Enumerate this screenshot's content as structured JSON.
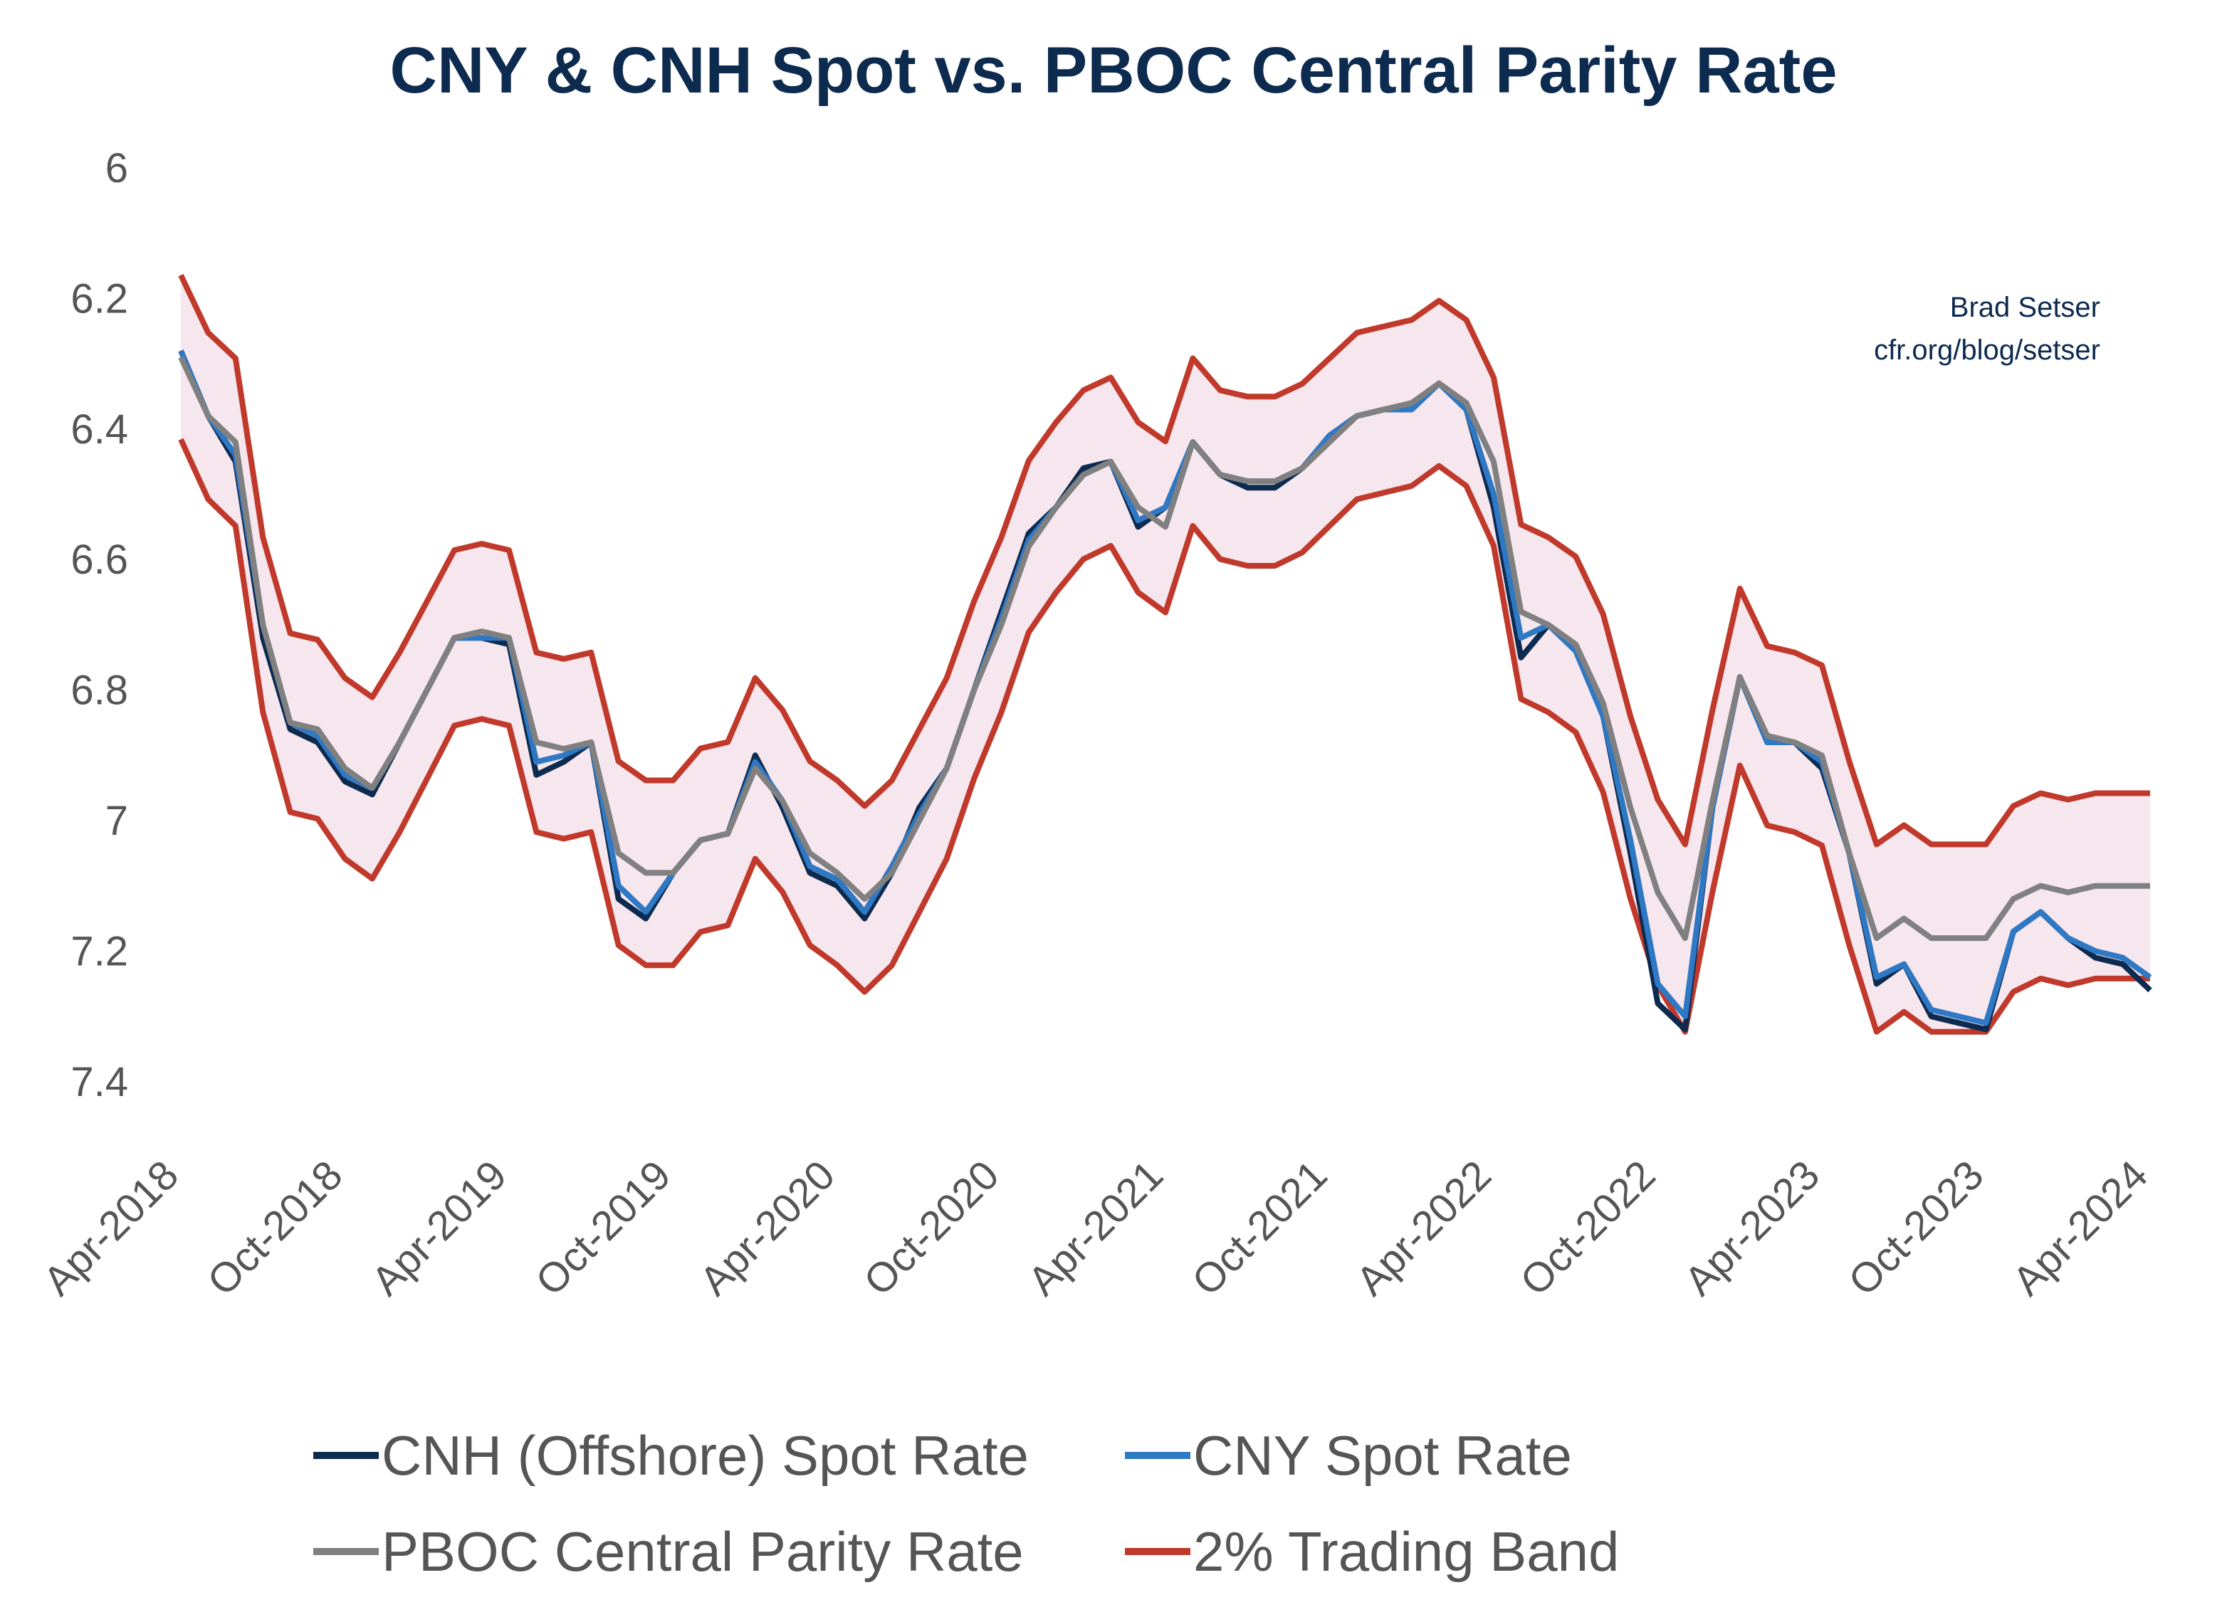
{
  "chart_data": {
    "type": "line",
    "title": "CNY & CNH Spot vs. PBOC Central Parity Rate",
    "credit": [
      "Brad Setser",
      "cfr.org/blog/setser"
    ],
    "ylim": [
      6,
      7.5
    ],
    "y_inverted": true,
    "y_ticks": [
      "6",
      "6.2",
      "6.4",
      "6.6",
      "6.8",
      "7",
      "7.2",
      "7.4"
    ],
    "x_ticks": [
      "Apr-2018",
      "Oct-2018",
      "Apr-2019",
      "Oct-2019",
      "Apr-2020",
      "Oct-2020",
      "Apr-2021",
      "Oct-2021",
      "Apr-2022",
      "Oct-2022",
      "Apr-2023",
      "Oct-2023",
      "Apr-2024"
    ],
    "grid": false,
    "legend_position": "bottom",
    "band_fill_color": "#f6e6ee",
    "x": [
      "2018-04",
      "2018-05",
      "2018-06",
      "2018-07",
      "2018-08",
      "2018-09",
      "2018-10",
      "2018-11",
      "2018-12",
      "2019-01",
      "2019-02",
      "2019-03",
      "2019-04",
      "2019-05",
      "2019-06",
      "2019-07",
      "2019-08",
      "2019-09",
      "2019-10",
      "2019-11",
      "2019-12",
      "2020-01",
      "2020-02",
      "2020-03",
      "2020-04",
      "2020-05",
      "2020-06",
      "2020-07",
      "2020-08",
      "2020-09",
      "2020-10",
      "2020-11",
      "2020-12",
      "2021-01",
      "2021-02",
      "2021-03",
      "2021-04",
      "2021-05",
      "2021-06",
      "2021-07",
      "2021-08",
      "2021-09",
      "2021-10",
      "2021-11",
      "2021-12",
      "2022-01",
      "2022-02",
      "2022-03",
      "2022-04",
      "2022-05",
      "2022-06",
      "2022-07",
      "2022-08",
      "2022-09",
      "2022-10",
      "2022-11",
      "2022-12",
      "2023-01",
      "2023-02",
      "2023-03",
      "2023-04",
      "2023-05",
      "2023-06",
      "2023-07",
      "2023-08",
      "2023-09",
      "2023-10",
      "2023-11",
      "2023-12",
      "2024-01",
      "2024-02",
      "2024-03",
      "2024-04"
    ],
    "series": [
      {
        "name": "CNH (Offshore) Spot Rate",
        "color": "#0d2a4f",
        "values": [
          6.28,
          6.38,
          6.45,
          6.72,
          6.86,
          6.88,
          6.94,
          6.96,
          6.88,
          6.8,
          6.72,
          6.72,
          6.73,
          6.93,
          6.91,
          6.88,
          7.12,
          7.15,
          7.08,
          7.03,
          7.02,
          6.9,
          6.98,
          7.08,
          7.1,
          7.15,
          7.08,
          6.98,
          6.92,
          6.8,
          6.68,
          6.56,
          6.52,
          6.46,
          6.45,
          6.55,
          6.52,
          6.42,
          6.47,
          6.49,
          6.49,
          6.46,
          6.41,
          6.38,
          6.37,
          6.37,
          6.33,
          6.37,
          6.52,
          6.75,
          6.7,
          6.74,
          6.84,
          7.05,
          7.28,
          7.32,
          6.98,
          6.78,
          6.88,
          6.88,
          6.92,
          7.05,
          7.25,
          7.22,
          7.3,
          7.31,
          7.32,
          7.17,
          7.14,
          7.18,
          7.21,
          7.22,
          7.26
        ]
      },
      {
        "name": "CNY Spot Rate",
        "color": "#2f78c4",
        "values": [
          6.28,
          6.38,
          6.44,
          6.7,
          6.85,
          6.87,
          6.93,
          6.95,
          6.88,
          6.8,
          6.72,
          6.72,
          6.72,
          6.91,
          6.9,
          6.88,
          7.1,
          7.14,
          7.08,
          7.03,
          7.02,
          6.91,
          6.97,
          7.07,
          7.09,
          7.14,
          7.07,
          6.99,
          6.92,
          6.8,
          6.69,
          6.57,
          6.52,
          6.47,
          6.45,
          6.54,
          6.52,
          6.42,
          6.47,
          6.48,
          6.48,
          6.46,
          6.41,
          6.38,
          6.37,
          6.37,
          6.33,
          6.37,
          6.5,
          6.72,
          6.7,
          6.74,
          6.84,
          7.03,
          7.25,
          7.3,
          6.98,
          6.78,
          6.88,
          6.88,
          6.91,
          7.05,
          7.24,
          7.22,
          7.29,
          7.3,
          7.31,
          7.17,
          7.14,
          7.18,
          7.2,
          7.21,
          7.24
        ]
      },
      {
        "name": "PBOC Central Parity Rate",
        "color": "#808080",
        "values": [
          6.29,
          6.38,
          6.42,
          6.7,
          6.85,
          6.86,
          6.92,
          6.95,
          6.88,
          6.8,
          6.72,
          6.71,
          6.72,
          6.88,
          6.89,
          6.88,
          7.05,
          7.08,
          7.08,
          7.03,
          7.02,
          6.92,
          6.97,
          7.05,
          7.08,
          7.12,
          7.08,
          7.0,
          6.92,
          6.8,
          6.7,
          6.58,
          6.52,
          6.47,
          6.45,
          6.52,
          6.55,
          6.42,
          6.47,
          6.48,
          6.48,
          6.46,
          6.42,
          6.38,
          6.37,
          6.36,
          6.33,
          6.36,
          6.45,
          6.68,
          6.7,
          6.73,
          6.82,
          6.98,
          7.11,
          7.18,
          6.97,
          6.78,
          6.87,
          6.88,
          6.9,
          7.05,
          7.18,
          7.15,
          7.18,
          7.18,
          7.18,
          7.12,
          7.1,
          7.11,
          7.1,
          7.1,
          7.1
        ]
      },
      {
        "name": "2% Trading Band",
        "color": "#c0392b",
        "band_pct": 2
      }
    ]
  }
}
